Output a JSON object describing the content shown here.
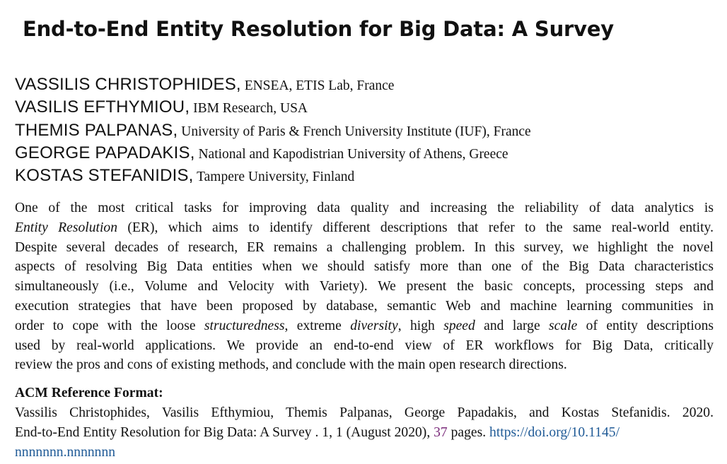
{
  "paper": {
    "title": "End-to-End Entity Resolution for Big Data: A Survey",
    "authors": [
      {
        "name": "VASSILIS CHRISTOPHIDES,",
        "affiliation": " ENSEA, ETIS Lab, France"
      },
      {
        "name": "VASILIS EFTHYMIOU,",
        "affiliation": " IBM Research, USA"
      },
      {
        "name": "THEMIS PALPANAS,",
        "affiliation": " University of Paris & French University Institute (IUF), France"
      },
      {
        "name": "GEORGE PAPADAKIS,",
        "affiliation": " National and Kapodistrian University of Athens, Greece"
      },
      {
        "name": "KOSTAS STEFANIDIS,",
        "affiliation": " Tampere University, Finland"
      }
    ],
    "abstract": {
      "l1": "One of the most critical tasks for improving data quality and increasing the reliability of data analytics is",
      "l2_em": "Entity Resolution",
      "l2_rest": " (ER), which aims to identify different descriptions that refer to the same real-world entity.",
      "l3": "Despite several decades of research, ER remains a challenging problem. In this survey, we highlight the novel",
      "l4": "aspects of resolving Big Data entities when we should satisfy more than one of the Big Data characteristics",
      "l5": "simultaneously (i.e., Volume and Velocity with Variety). We present the basic concepts, processing steps and",
      "l6": "execution strategies that have been proposed by database, semantic Web and machine learning communities in",
      "l7_a": "order to cope with the loose ",
      "l7_em1": "structuredness",
      "l7_b": ", extreme ",
      "l7_em2": "diversity",
      "l7_c": ", high ",
      "l7_em3": "speed",
      "l7_d": " and large ",
      "l7_em4": "scale",
      "l7_e": " of entity descriptions",
      "l8": "used by real-world applications. We provide an end-to-end view of ER workflows for Big Data, critically",
      "l9": "review the pros and cons of existing methods, and conclude with the main open research directions."
    },
    "reference": {
      "heading": "ACM Reference Format:",
      "l1": "Vassilis Christophides, Vasilis Efthymiou, Themis Palpanas, George Papadakis, and Kostas Stefanidis. 2020.",
      "l2_a": "End-to-End Entity Resolution for Big Data: A Survey .  1, 1 (August 2020), ",
      "l2_pages": "37",
      "l2_b": " pages. ",
      "doi_part1": "https://doi.org/10.1145/",
      "doi_part2": "nnnnnnn.nnnnnnn"
    }
  },
  "colors": {
    "text": "#111111",
    "pages_link": "#7a2a7a",
    "doi_link": "#1f5a96"
  }
}
